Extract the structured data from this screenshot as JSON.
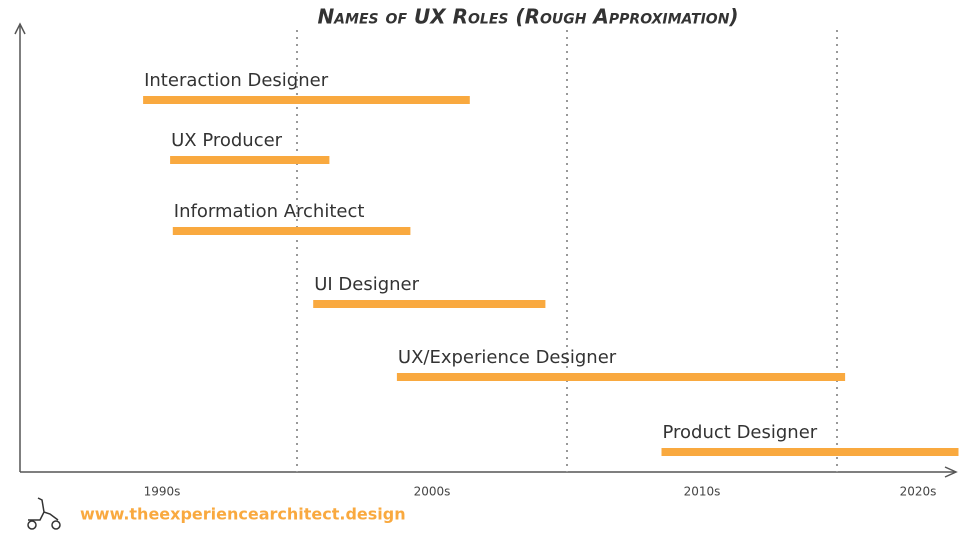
{
  "chart_data": {
    "type": "timeline",
    "title": "Names of UX Roles (Rough Approximation)",
    "color": "#f9a93f",
    "tasks": [
      {
        "name": "Interaction Designer",
        "start": 1994.3,
        "end": 2006.4
      },
      {
        "name": "UX Producer",
        "start": 1995.3,
        "end": 2001.2
      },
      {
        "name": "Information Architect",
        "start": 1995.4,
        "end": 2004.2
      },
      {
        "name": "UI Designer",
        "start": 2000.6,
        "end": 2009.2
      },
      {
        "name": "UX/Experience Designer",
        "start": 2003.7,
        "end": 2020.3
      },
      {
        "name": "Product Designer",
        "start": 2013.5,
        "end": 2024.5
      }
    ],
    "xlim": [
      1990,
      2024.5
    ],
    "xticks": [
      {
        "value": 1995,
        "label": "1990s"
      },
      {
        "value": 2005,
        "label": "2000s"
      },
      {
        "value": 2015,
        "label": "2010s"
      },
      {
        "value": 2023,
        "label": "2020s"
      }
    ],
    "grid_lines": [
      2000,
      2010,
      2020
    ],
    "footer": "www.theexperiencearchitect.design"
  }
}
